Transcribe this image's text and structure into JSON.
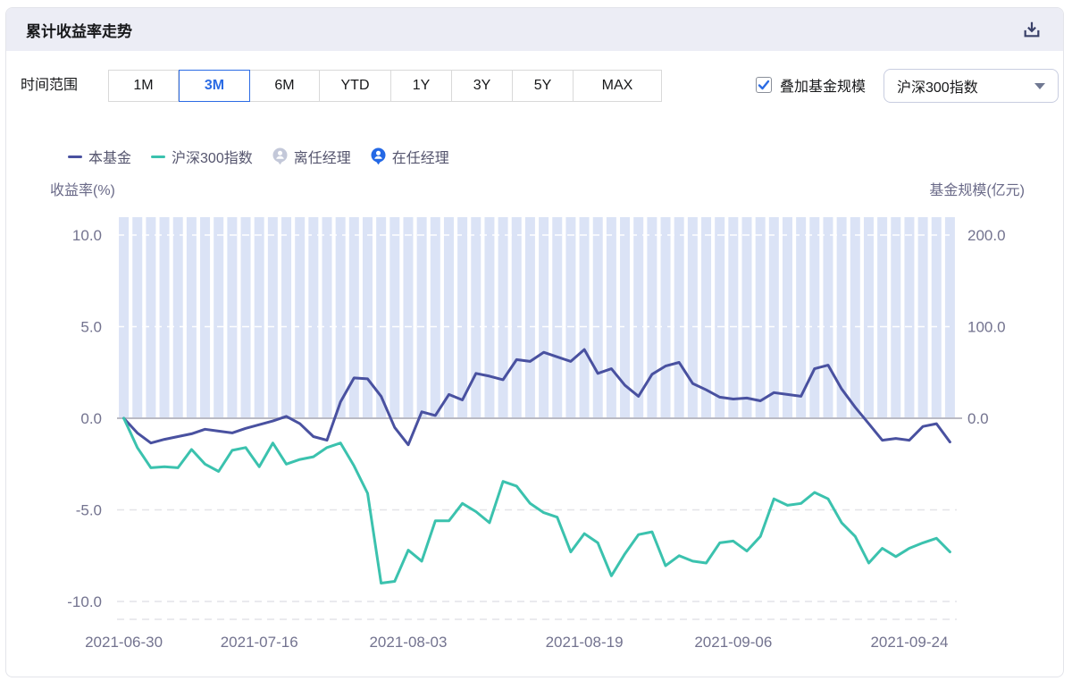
{
  "header": {
    "title": "累计收益率走势"
  },
  "controls": {
    "time_range_label": "时间范围",
    "time_ranges": [
      "1M",
      "3M",
      "6M",
      "YTD",
      "1Y",
      "3Y",
      "5Y",
      "MAX"
    ],
    "selected_time_range": "3M",
    "overlay_checkbox_label": "叠加基金规模",
    "overlay_checked": true,
    "benchmark_select_value": "沪深300指数"
  },
  "legend": {
    "items": [
      {
        "label": "本基金",
        "type": "line",
        "color": "#4951A0"
      },
      {
        "label": "沪深300指数",
        "type": "line",
        "color": "#3BC2AE"
      },
      {
        "label": "离任经理",
        "type": "manager-badge",
        "color": "#C3C8D9"
      },
      {
        "label": "在任经理",
        "type": "manager-badge",
        "color": "#2468E5"
      }
    ]
  },
  "axes": {
    "left_title": "收益率(%)",
    "right_title": "基金规模(亿元)"
  },
  "colors": {
    "accent_blue": "#2B6BE4",
    "fund_line": "#4951A0",
    "index_line": "#3BC2AE",
    "scale_bar": "#DBE3F6",
    "zero_line": "#BABAC4",
    "grid_dash": "#E3E3E8",
    "axis_text": "#73738F",
    "header_bg": "#ECEDF5"
  },
  "chart_data": {
    "type": "line+bar",
    "title": "累计收益率走势",
    "x_count": 62,
    "x_tick_labels": [
      "2021-06-30",
      "2021-07-16",
      "2021-08-03",
      "2021-08-19",
      "2021-09-06",
      "2021-09-24"
    ],
    "x_tick_indices": [
      0,
      10,
      21,
      34,
      45,
      58
    ],
    "y_left": {
      "label": "收益率(%)",
      "ticks": [
        10,
        5,
        0,
        -5,
        -10
      ],
      "range": [
        -11,
        11
      ]
    },
    "y_right": {
      "label": "基金规模(亿元)",
      "ticks": [
        200,
        100,
        0
      ],
      "range": [
        -220,
        220
      ]
    },
    "grid": true,
    "legend_position": "top-left",
    "series": [
      {
        "name": "本基金",
        "type": "line",
        "axis": "left",
        "color": "#4951A0",
        "values": [
          0.0,
          -0.8,
          -1.35,
          -1.15,
          -1.0,
          -0.85,
          -0.6,
          -0.7,
          -0.8,
          -0.55,
          -0.35,
          -0.15,
          0.1,
          -0.3,
          -1.0,
          -1.2,
          0.9,
          2.2,
          2.15,
          1.2,
          -0.5,
          -1.45,
          0.35,
          0.15,
          1.3,
          1.0,
          2.45,
          2.3,
          2.1,
          3.2,
          3.1,
          3.6,
          3.35,
          3.1,
          3.75,
          2.45,
          2.7,
          1.8,
          1.2,
          2.4,
          2.85,
          3.05,
          1.9,
          1.55,
          1.15,
          1.05,
          1.1,
          0.95,
          1.4,
          1.3,
          1.2,
          2.7,
          2.9,
          1.6,
          0.6,
          -0.3,
          -1.2,
          -1.1,
          -1.2,
          -0.45,
          -0.3,
          -1.3
        ]
      },
      {
        "name": "沪深300指数",
        "type": "line",
        "axis": "left",
        "color": "#3BC2AE",
        "values": [
          0.0,
          -1.6,
          -2.7,
          -2.65,
          -2.7,
          -1.7,
          -2.5,
          -2.9,
          -1.75,
          -1.6,
          -2.65,
          -1.35,
          -2.5,
          -2.25,
          -2.1,
          -1.6,
          -1.35,
          -2.6,
          -4.1,
          -9.0,
          -8.9,
          -7.2,
          -7.8,
          -5.6,
          -5.6,
          -4.65,
          -5.1,
          -5.7,
          -3.45,
          -3.7,
          -4.65,
          -5.15,
          -5.4,
          -7.3,
          -6.3,
          -6.8,
          -8.6,
          -7.4,
          -6.35,
          -6.2,
          -8.05,
          -7.5,
          -7.8,
          -7.9,
          -6.8,
          -6.7,
          -7.25,
          -6.45,
          -4.4,
          -4.75,
          -4.65,
          -4.05,
          -4.4,
          -5.7,
          -6.45,
          -7.9,
          -7.1,
          -7.55,
          -7.1,
          -6.8,
          -6.55,
          -7.3
        ]
      },
      {
        "name": "基金规模",
        "type": "bar",
        "axis": "right",
        "color": "#DBE3F6",
        "uniform_value": 220,
        "count": 62
      }
    ]
  }
}
